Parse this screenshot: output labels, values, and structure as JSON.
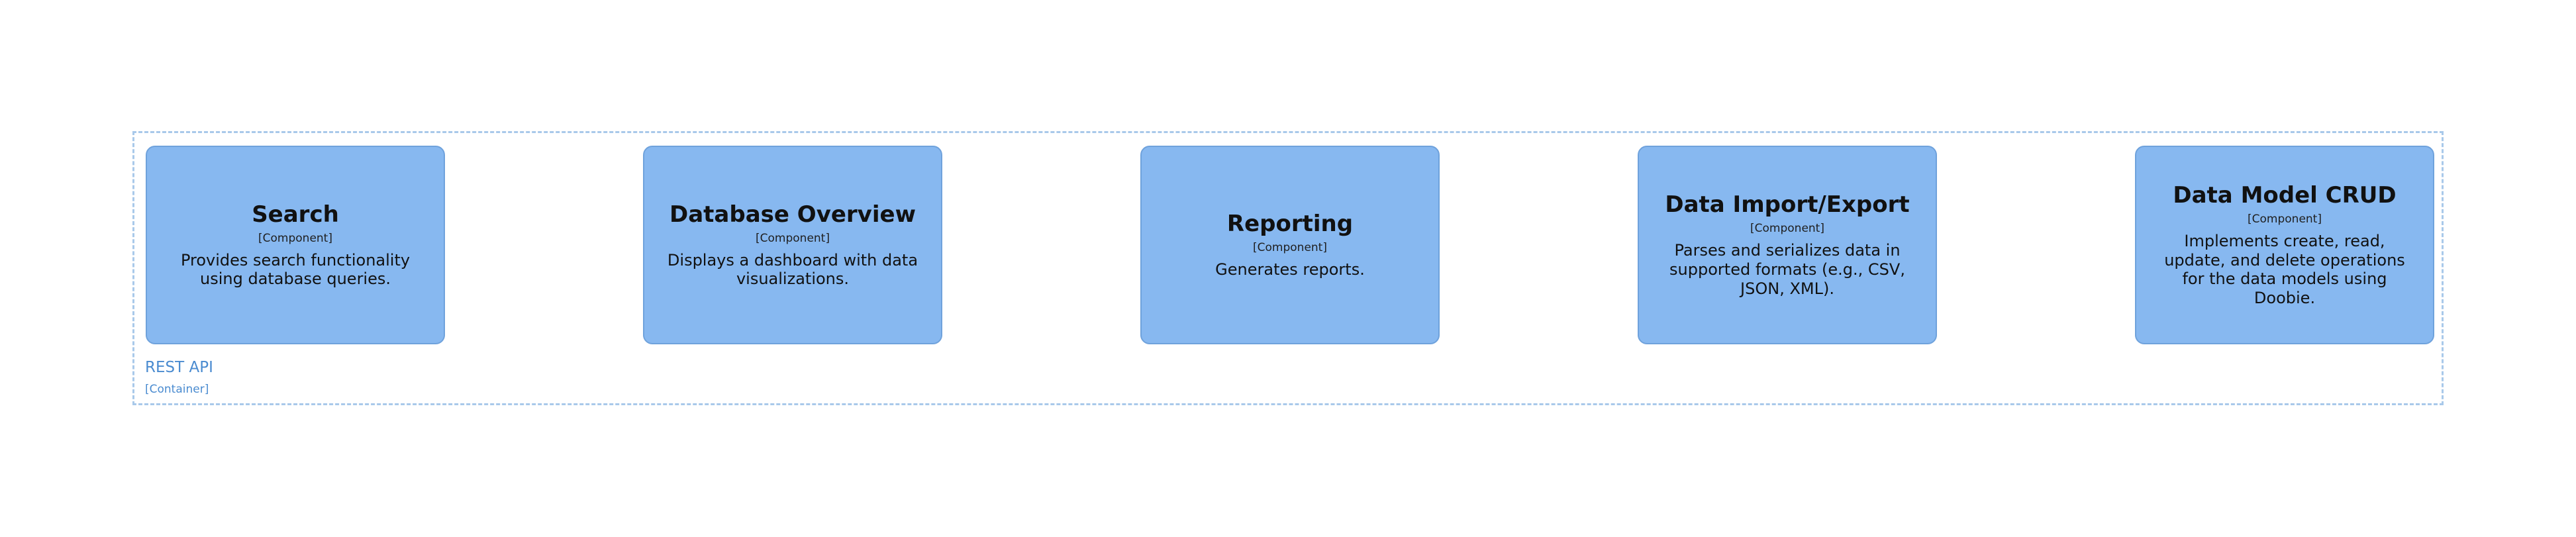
{
  "container": {
    "name": "REST API",
    "type": "[Container]"
  },
  "components": [
    {
      "name": "Search",
      "type": "[Component]",
      "description": "Provides search functionality using database queries."
    },
    {
      "name": "Database Overview",
      "type": "[Component]",
      "description": "Displays a dashboard with data visualizations."
    },
    {
      "name": "Reporting",
      "type": "[Component]",
      "description": "Generates reports."
    },
    {
      "name": "Data Import/Export",
      "type": "[Component]",
      "description": "Parses and serializes data in supported formats (e.g., CSV, JSON, XML)."
    },
    {
      "name": "Data Model CRUD",
      "type": "[Component]",
      "description": "Implements create, read, update, and delete operations for the data models using Doobie."
    }
  ],
  "colors": {
    "component_fill": "#87b8f0",
    "component_border": "#6fa2dc",
    "boundary": "#a9c9ea",
    "boundary_text": "#4a8bd0"
  }
}
